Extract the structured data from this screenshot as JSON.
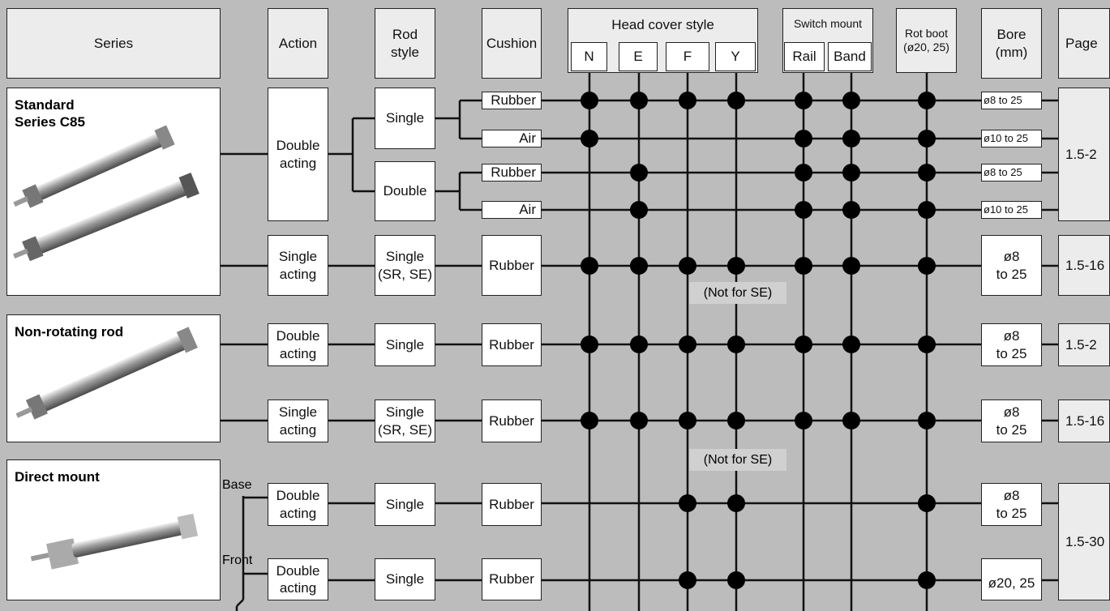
{
  "header": {
    "series": "Series",
    "action": "Action",
    "rod_style": "Rod\nstyle",
    "cushion": "Cushion",
    "head_cover_style": {
      "title": "Head cover style",
      "options": [
        "N",
        "E",
        "F",
        "Y"
      ]
    },
    "switch_mount": {
      "title": "Switch mount",
      "options": [
        "Rail",
        "Band"
      ]
    },
    "rot_boot": "Rot boot\n(ø20, 25)",
    "bore": "Bore\n(mm)",
    "page": "Page"
  },
  "series": [
    "Standard\nSeries C85",
    "Non-rotating rod",
    "Direct mount"
  ],
  "mount_labels": [
    "Base",
    "Front"
  ],
  "actions": [
    "Double\nacting",
    "Single\nacting",
    "Double\nacting",
    "Single\nacting",
    "Double\nacting",
    "Double\nacting"
  ],
  "rod_styles": [
    "Single",
    "Double",
    "Single\n(SR, SE)",
    "Single",
    "Single\n(SR, SE)",
    "Single",
    "Single"
  ],
  "cushions": [
    "Rubber",
    "Air",
    "Rubber",
    "Air",
    "Rubber",
    "Rubber",
    "Rubber",
    "Rubber",
    "Rubber"
  ],
  "bores": [
    "ø8 to 25",
    "ø10 to 25",
    "ø8 to 25",
    "ø10 to 25",
    "ø8\nto 25",
    "ø8\nto 25",
    "ø8\nto 25",
    "ø8\nto 25",
    "ø20, 25"
  ],
  "pages": [
    "1.5-2",
    "1.5-16",
    "1.5-2",
    "1.5-16",
    "1.5-30"
  ],
  "notes": [
    "(Not for SE)",
    "(Not for SE)"
  ]
}
